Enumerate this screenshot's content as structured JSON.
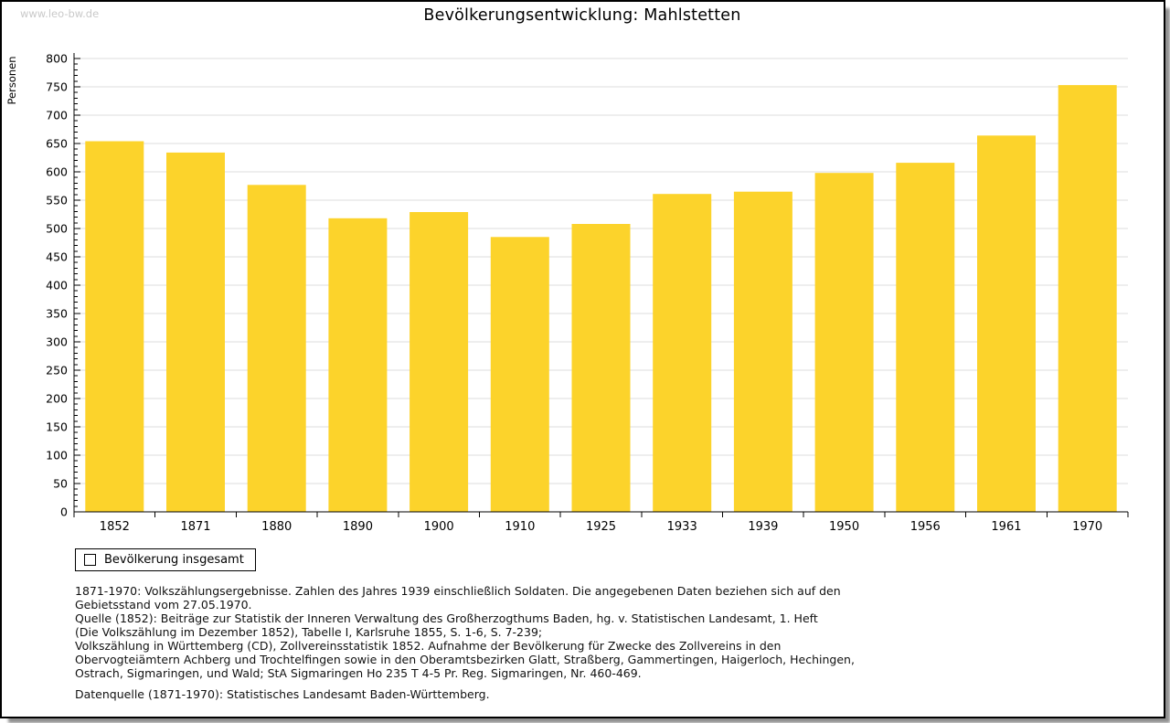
{
  "watermark": "www.leo-bw.de",
  "title": "Bevölkerungsentwicklung: Mahlstetten",
  "chart_data": {
    "type": "bar",
    "title": "Bevölkerungsentwicklung: Mahlstetten",
    "categories": [
      "1852",
      "1871",
      "1880",
      "1890",
      "1900",
      "1910",
      "1925",
      "1933",
      "1939",
      "1950",
      "1956",
      "1961",
      "1970"
    ],
    "values": [
      654,
      634,
      577,
      518,
      529,
      485,
      508,
      561,
      565,
      598,
      616,
      664,
      753
    ],
    "series_name": "Bevölkerung insgesamt",
    "xlabel": "",
    "ylabel": "Personen",
    "ylim": [
      0,
      800
    ],
    "ytick_step": 50,
    "y_minor_step": 10,
    "grid": true,
    "legend_position": "bottom-left",
    "bar_color": "#FCD32B",
    "gridline_color": "#dedede",
    "axis_color": "#000000"
  },
  "legend": {
    "label": "Bevölkerung insgesamt",
    "swatch_color": "#FCD32B"
  },
  "footer": {
    "lines": [
      "1871-1970: Volkszählungsergebnisse. Zahlen des Jahres 1939 einschließlich Soldaten. Die angegebenen Daten beziehen sich auf den",
      "Gebietsstand vom 27.05.1970.",
      "Quelle (1852): Beiträge zur Statistik der Inneren Verwaltung des Großherzogthums Baden, hg. v. Statistischen Landesamt, 1. Heft",
      "(Die Volkszählung im Dezember 1852), Tabelle I, Karlsruhe 1855, S. 1-6, S. 7-239;",
      "Volkszählung in Württemberg (CD), Zollvereinsstatistik 1852. Aufnahme der Bevölkerung für Zwecke des Zollvereins in den",
      "Obervogteiämtern Achberg und Trochtelfingen sowie in den Oberamtsbezirken Glatt, Straßberg, Gammertingen, Haigerloch, Hechingen,",
      "Ostrach, Sigmaringen, und Wald; StA Sigmaringen Ho 235 T 4-5 Pr. Reg. Sigmaringen, Nr. 460-469."
    ],
    "datasource": "Datenquelle (1871-1970): Statistisches Landesamt Baden-Württemberg."
  }
}
